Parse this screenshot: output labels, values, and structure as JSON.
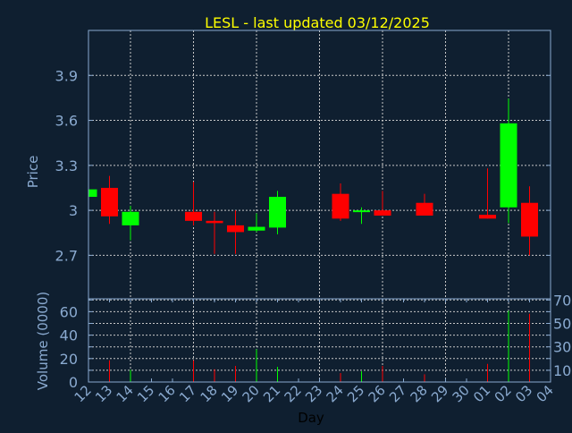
{
  "chart_data": [
    {
      "type": "candlestick",
      "title": "LESL - last updated 03/12/2025",
      "xlabel": "Day",
      "ylabel": "Price",
      "ylim": [
        2.41,
        4.2
      ],
      "yticks": [
        "2.7",
        "3",
        "3.3",
        "3.6",
        "3.9"
      ],
      "ytick_values": [
        2.7,
        3.0,
        3.3,
        3.6,
        3.9
      ],
      "grid": true,
      "categories": [
        "12",
        "13",
        "14",
        "15",
        "16",
        "17",
        "18",
        "19",
        "20",
        "21",
        "22",
        "23",
        "24",
        "25",
        "26",
        "27",
        "28",
        "29",
        "30",
        "01",
        "02",
        "03",
        "04"
      ],
      "candles": [
        {
          "day": "12",
          "open": 3.09,
          "high": 3.14,
          "low": 3.09,
          "close": 3.14
        },
        {
          "day": "13",
          "open": 3.15,
          "high": 3.23,
          "low": 2.91,
          "close": 2.96
        },
        {
          "day": "14",
          "open": 2.9,
          "high": 3.03,
          "low": 2.8,
          "close": 2.99
        },
        {
          "day": "17",
          "open": 2.99,
          "high": 3.19,
          "low": 2.9,
          "close": 2.93
        },
        {
          "day": "18",
          "open": 2.93,
          "high": 2.99,
          "low": 2.71,
          "close": 2.915
        },
        {
          "day": "19",
          "open": 2.9,
          "high": 3.0,
          "low": 2.71,
          "close": 2.855
        },
        {
          "day": "20",
          "open": 2.865,
          "high": 2.98,
          "low": 2.855,
          "close": 2.89
        },
        {
          "day": "21",
          "open": 2.885,
          "high": 3.13,
          "low": 2.84,
          "close": 3.09
        },
        {
          "day": "24",
          "open": 3.11,
          "high": 3.18,
          "low": 2.93,
          "close": 2.945
        },
        {
          "day": "25",
          "open": 2.99,
          "high": 3.02,
          "low": 2.91,
          "close": 3.0
        },
        {
          "day": "26",
          "open": 3.0,
          "high": 3.13,
          "low": 2.965,
          "close": 2.965
        },
        {
          "day": "28",
          "open": 3.05,
          "high": 3.11,
          "low": 2.965,
          "close": 2.965
        },
        {
          "day": "01",
          "open": 2.97,
          "high": 3.28,
          "low": 2.945,
          "close": 2.945
        },
        {
          "day": "02",
          "open": 3.02,
          "high": 3.745,
          "low": 2.915,
          "close": 3.58
        },
        {
          "day": "03",
          "open": 3.05,
          "high": 3.16,
          "low": 2.7,
          "close": 2.825
        }
      ]
    },
    {
      "type": "bar",
      "xlabel": "Day",
      "ylabel": "Volume (0000)",
      "ylim": [
        0,
        71
      ],
      "yticks": [
        "0",
        "10",
        "20",
        "30",
        "40",
        "50",
        "60",
        "70"
      ],
      "ytick_values": [
        0,
        10,
        20,
        30,
        40,
        50,
        60,
        70
      ],
      "grid": true,
      "bars": [
        {
          "day": "13",
          "value": 18.5,
          "direction": "down"
        },
        {
          "day": "14",
          "value": 10.4,
          "direction": "up"
        },
        {
          "day": "17",
          "value": 18.5,
          "direction": "down"
        },
        {
          "day": "18",
          "value": 10.9,
          "direction": "down"
        },
        {
          "day": "19",
          "value": 13.7,
          "direction": "down"
        },
        {
          "day": "20",
          "value": 28,
          "direction": "up"
        },
        {
          "day": "21",
          "value": 13,
          "direction": "up"
        },
        {
          "day": "24",
          "value": 7.6,
          "direction": "down"
        },
        {
          "day": "25",
          "value": 9.2,
          "direction": "up"
        },
        {
          "day": "26",
          "value": 13.7,
          "direction": "down"
        },
        {
          "day": "28",
          "value": 6.6,
          "direction": "down"
        },
        {
          "day": "01",
          "value": 15.5,
          "direction": "down"
        },
        {
          "day": "02",
          "value": 60.8,
          "direction": "up"
        },
        {
          "day": "03",
          "value": 58.3,
          "direction": "down"
        }
      ]
    }
  ],
  "colors": {
    "background": "#0f1f30",
    "title": "#ffff00",
    "axis": "#8aaad0",
    "grid": "#c8c8c8",
    "up": "#00ff00",
    "down": "#ff0000",
    "xlabel": "#000000"
  }
}
